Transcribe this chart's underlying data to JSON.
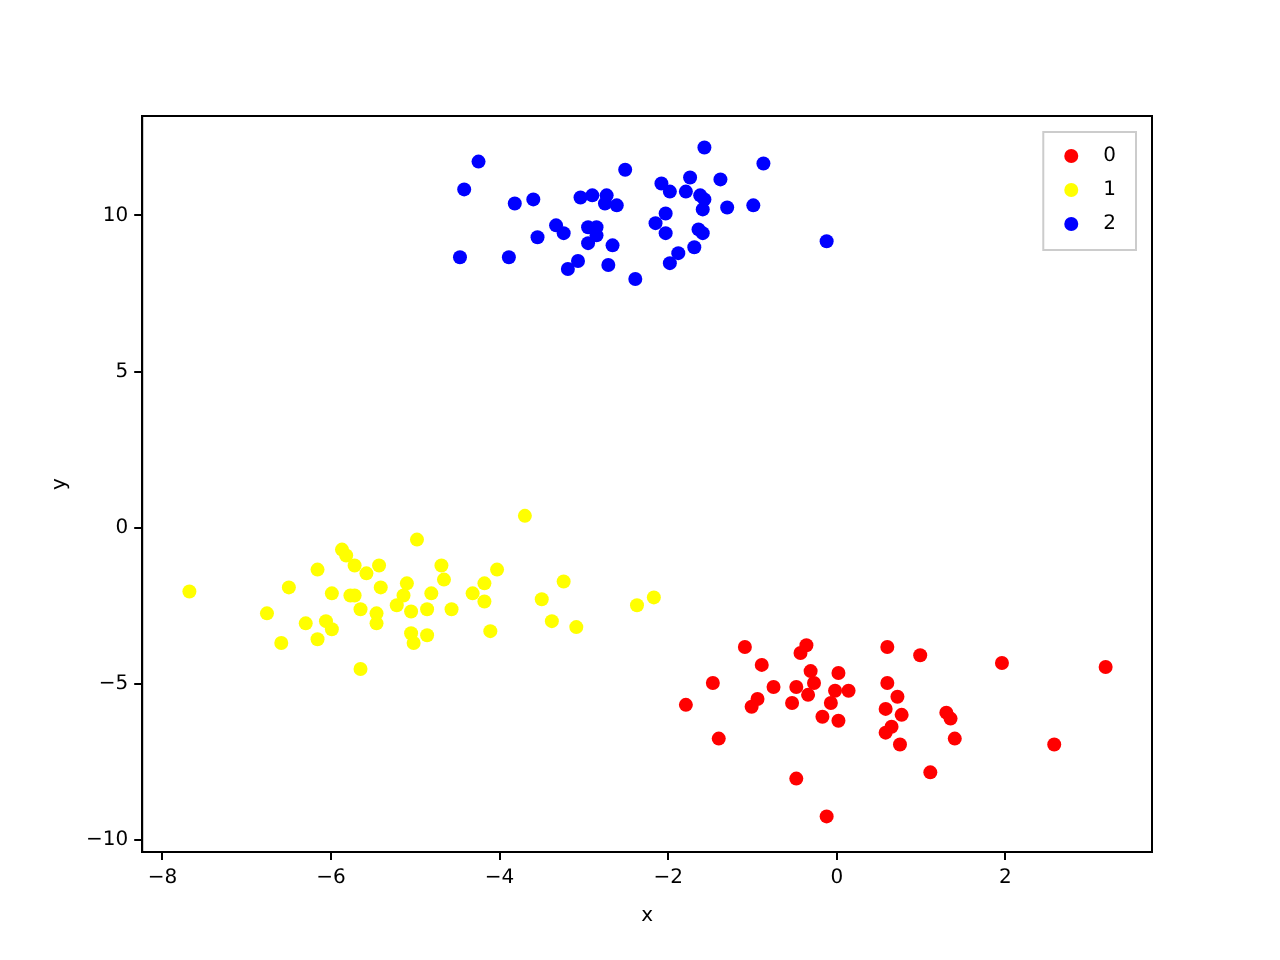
{
  "chart_data": {
    "type": "scatter",
    "xlabel": "x",
    "ylabel": "y",
    "xlim": [
      -8.24,
      3.74
    ],
    "ylim": [
      -10.38,
      13.18
    ],
    "xticks": [
      -8,
      -6,
      -4,
      -2,
      0,
      2
    ],
    "yticks": [
      -10,
      -5,
      0,
      5,
      10
    ],
    "grid": false,
    "legend": "top right",
    "marker": "circle",
    "series": [
      {
        "name": "0",
        "color": "#ff0000",
        "x": [
          -1.79,
          -1.47,
          -1.4,
          -1.09,
          -1.01,
          -0.94,
          -0.89,
          -0.75,
          -0.53,
          -0.48,
          -0.48,
          -0.43,
          -0.36,
          -0.34,
          -0.31,
          -0.27,
          -0.17,
          -0.12,
          -0.07,
          -0.02,
          0.02,
          0.02,
          0.14,
          0.6,
          0.6,
          0.58,
          0.58,
          0.65,
          0.72,
          0.77,
          0.75,
          0.99,
          1.11,
          1.3,
          1.35,
          1.4,
          1.96,
          2.58,
          3.19
        ],
        "values": [
          -5.67,
          -4.97,
          -6.75,
          -3.82,
          -5.73,
          -5.48,
          -4.39,
          -5.1,
          -5.61,
          -8.03,
          -5.1,
          -4.01,
          -3.76,
          -5.35,
          -4.59,
          -4.97,
          -6.05,
          -9.24,
          -5.61,
          -5.22,
          -6.18,
          -4.65,
          -5.22,
          -3.82,
          -4.97,
          -5.8,
          -6.56,
          -6.37,
          -5.41,
          -5.99,
          -6.94,
          -4.08,
          -7.83,
          -5.92,
          -6.11,
          -6.75,
          -4.33,
          -6.94,
          -4.46
        ]
      },
      {
        "name": "1",
        "color": "#ffff00",
        "x": [
          -7.68,
          -6.76,
          -6.59,
          -6.5,
          -6.3,
          -6.16,
          -6.16,
          -6.06,
          -5.99,
          -5.99,
          -5.87,
          -5.82,
          -5.77,
          -5.72,
          -5.72,
          -5.65,
          -5.65,
          -5.58,
          -5.43,
          -5.46,
          -5.46,
          -5.41,
          -5.22,
          -5.14,
          -5.1,
          -5.05,
          -5.05,
          -5.02,
          -4.98,
          -4.86,
          -4.86,
          -4.81,
          -4.69,
          -4.66,
          -4.57,
          -4.32,
          -4.18,
          -4.18,
          -4.11,
          -4.03,
          -3.7,
          -3.5,
          -3.38,
          -3.24,
          -3.09,
          -2.37,
          -2.17
        ],
        "values": [
          -2.04,
          -2.74,
          -3.69,
          -1.91,
          -3.06,
          -3.57,
          -1.34,
          -2.99,
          -3.25,
          -2.1,
          -0.7,
          -0.89,
          -2.17,
          -2.17,
          -1.21,
          -2.61,
          -4.52,
          -1.46,
          -1.21,
          -2.74,
          -3.06,
          -1.91,
          -2.48,
          -2.17,
          -1.78,
          -2.68,
          -3.38,
          -3.69,
          -0.38,
          -2.61,
          -3.44,
          -2.1,
          -1.21,
          -1.66,
          -2.61,
          -2.1,
          -1.78,
          -2.36,
          -3.31,
          -1.34,
          0.38,
          -2.29,
          -2.99,
          -1.72,
          -3.18,
          -2.48,
          -2.23
        ]
      },
      {
        "name": "2",
        "color": "#0000ff",
        "x": [
          -4.25,
          -4.42,
          -4.47,
          -3.89,
          -3.82,
          -3.6,
          -3.55,
          -3.33,
          -3.24,
          -3.19,
          -3.07,
          -3.04,
          -2.9,
          -2.95,
          -2.85,
          -2.95,
          -2.85,
          -2.73,
          -2.75,
          -2.61,
          -2.66,
          -2.71,
          -2.51,
          -2.39,
          -2.15,
          -2.08,
          -2.03,
          -2.03,
          -1.98,
          -1.98,
          -1.88,
          -1.79,
          -1.74,
          -1.69,
          -1.62,
          -1.59,
          -1.64,
          -1.57,
          -1.59,
          -1.57,
          -1.38,
          -1.3,
          -0.99,
          -0.87,
          -0.12
        ],
        "values": [
          11.72,
          10.83,
          8.66,
          8.66,
          10.38,
          10.51,
          9.3,
          9.68,
          9.43,
          8.28,
          8.54,
          10.57,
          10.64,
          9.62,
          9.62,
          9.11,
          9.36,
          10.64,
          10.38,
          10.32,
          9.04,
          8.41,
          11.46,
          7.96,
          9.75,
          11.02,
          10.06,
          9.43,
          10.76,
          8.47,
          8.79,
          10.76,
          11.21,
          8.98,
          10.64,
          10.19,
          9.55,
          10.51,
          9.43,
          12.17,
          11.15,
          10.25,
          10.32,
          11.66,
          9.17
        ]
      }
    ]
  }
}
